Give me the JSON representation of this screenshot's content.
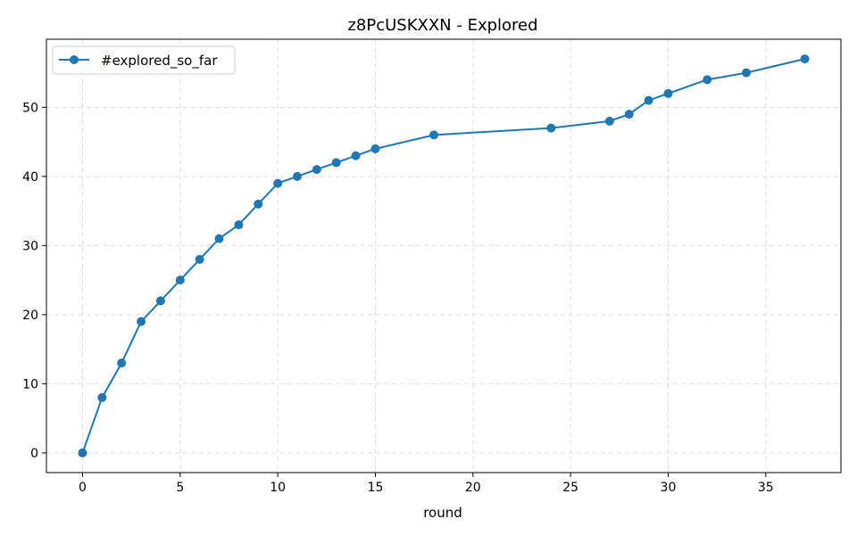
{
  "chart_data": {
    "type": "line",
    "title": "z8PcUSKXXN - Explored",
    "xlabel": "round",
    "ylabel": "",
    "xlim": [
      -1.85,
      38.85
    ],
    "ylim": [
      -2.85,
      59.85
    ],
    "xticks": [
      0,
      5,
      10,
      15,
      20,
      25,
      30,
      35
    ],
    "yticks": [
      0,
      10,
      20,
      30,
      40,
      50
    ],
    "grid": true,
    "legend_position": "top-left",
    "series": [
      {
        "name": "#explored_so_far",
        "color": "#1f77b4",
        "marker": "circle",
        "x": [
          0,
          1,
          2,
          3,
          4,
          5,
          6,
          7,
          8,
          9,
          10,
          11,
          12,
          13,
          14,
          15,
          18,
          24,
          27,
          28,
          29,
          30,
          32,
          34,
          37
        ],
        "y": [
          0,
          8,
          13,
          19,
          22,
          25,
          28,
          31,
          33,
          36,
          39,
          40,
          41,
          42,
          43,
          44,
          46,
          47,
          48,
          49,
          51,
          52,
          54,
          55,
          57
        ]
      }
    ]
  }
}
